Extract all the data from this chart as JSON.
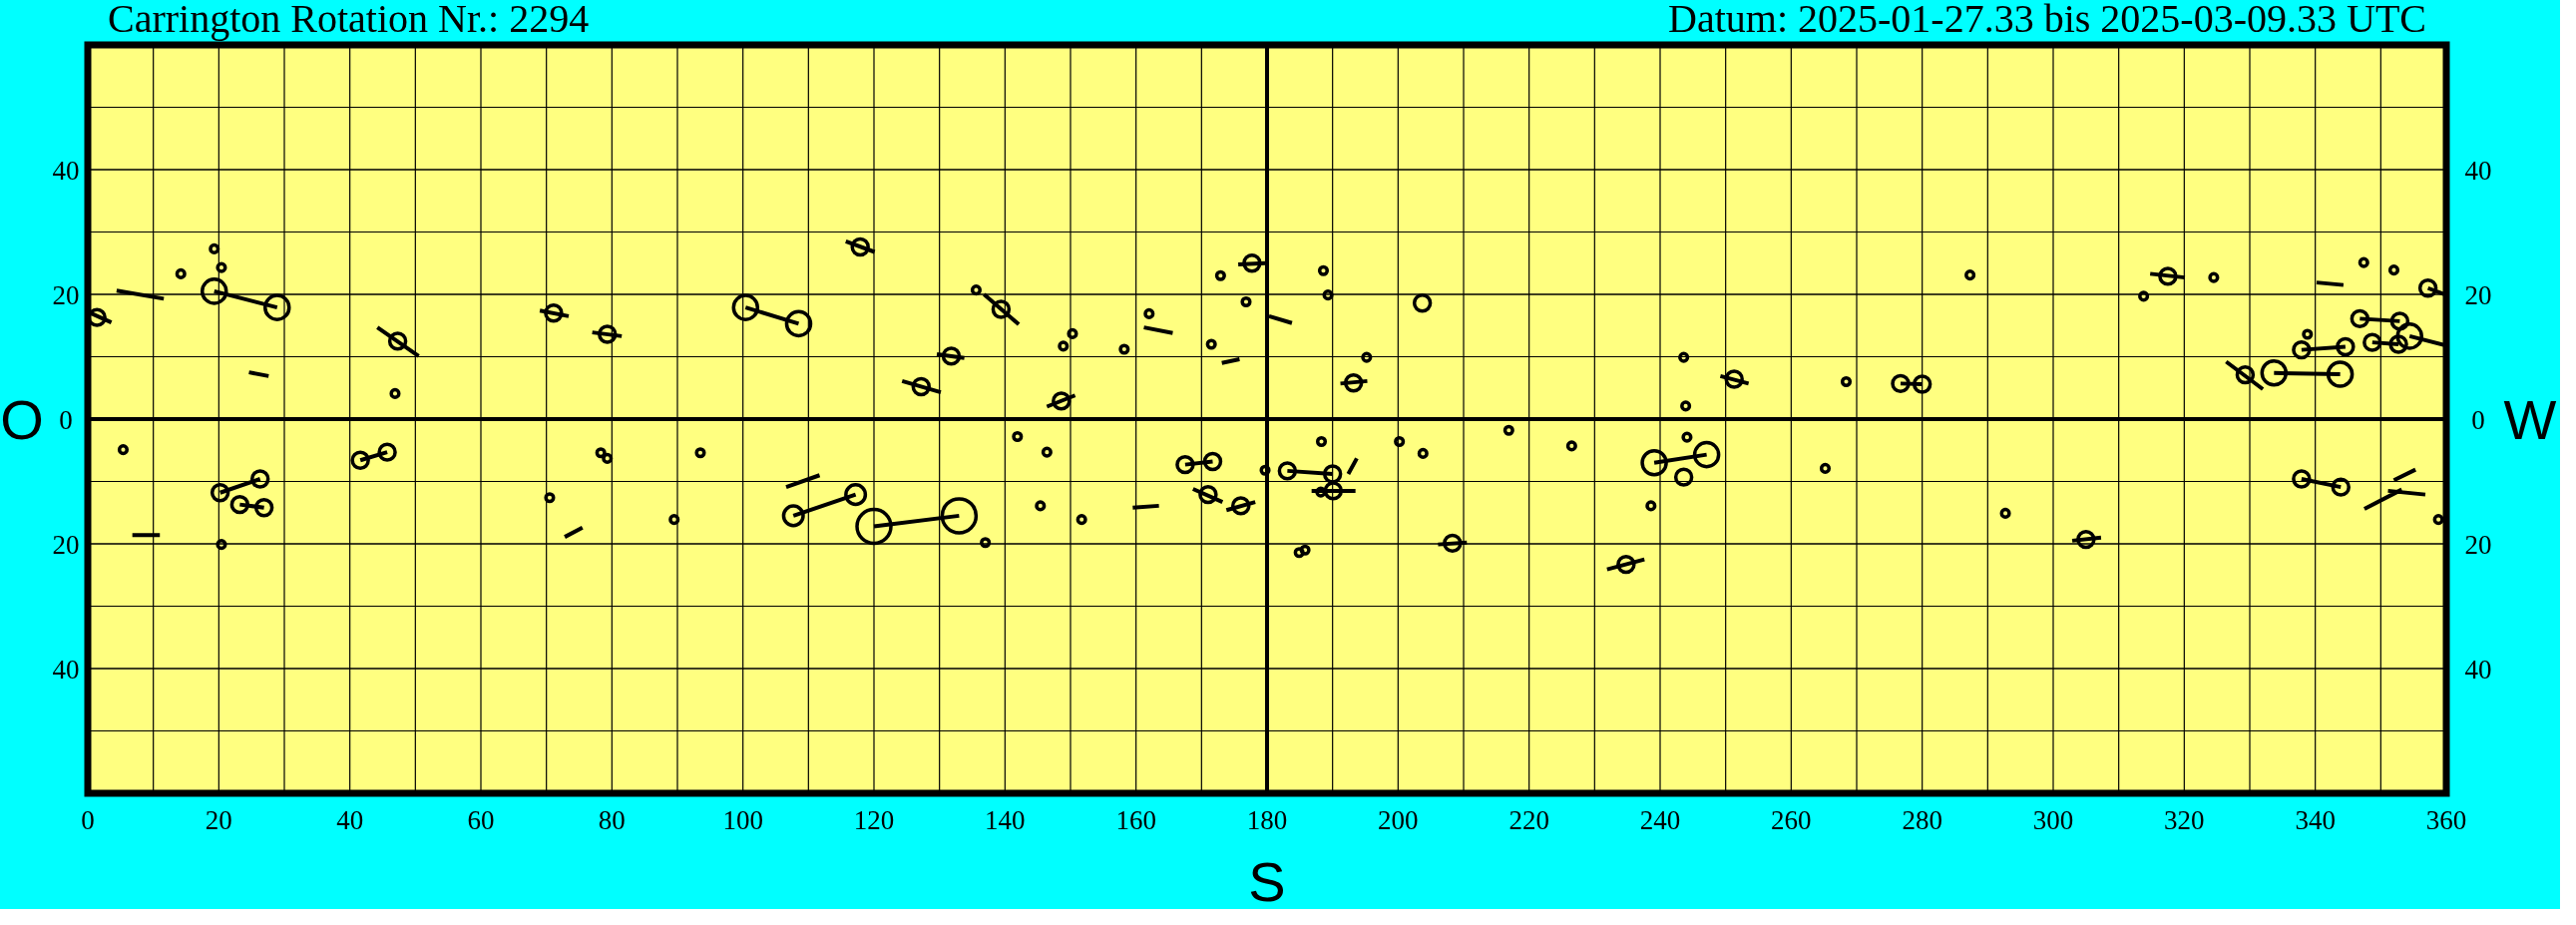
{
  "chart_data": {
    "type": "bubble",
    "title": "Carrington Rotation Nr.: 2294",
    "subtitle": "Datum: 2025-01-27.33 bis 2025-03-09.33 UTC",
    "xlabel": "S",
    "ylabel": "O",
    "y2label": "W",
    "relative": false,
    "xlim": [
      0,
      360
    ],
    "xticks": [
      0,
      {
        "value": 10,
        "label": null
      },
      20,
      {
        "value": 30,
        "label": null
      },
      40,
      {
        "value": 50,
        "label": null
      },
      60,
      {
        "value": 70,
        "label": null
      },
      80,
      {
        "value": 90,
        "label": null
      },
      100,
      {
        "value": 110,
        "label": null
      },
      120,
      {
        "value": 130,
        "label": null
      },
      140,
      {
        "value": 150,
        "label": null
      },
      160,
      {
        "value": 170,
        "label": null
      },
      180,
      {
        "value": 190,
        "label": null
      },
      200,
      {
        "value": 210,
        "label": null
      },
      220,
      {
        "value": 230,
        "label": null
      },
      240,
      {
        "value": 250,
        "label": null
      },
      260,
      {
        "value": 270,
        "label": null
      },
      280,
      {
        "value": 290,
        "label": null
      },
      300,
      {
        "value": 310,
        "label": null
      },
      320,
      {
        "value": 330,
        "label": null
      },
      340,
      {
        "value": 350,
        "label": null
      },
      360
    ],
    "ylim": [
      -60,
      60
    ],
    "yticks": [
      {
        "value": -50,
        "label": null
      },
      {
        "value": -40,
        "label": "40"
      },
      {
        "value": -30,
        "label": null
      },
      {
        "value": -20,
        "label": "20"
      },
      {
        "value": -10,
        "label": null
      },
      0,
      {
        "value": 10,
        "label": null
      },
      20,
      {
        "value": 30,
        "label": null
      },
      40,
      {
        "value": 50,
        "label": null
      }
    ],
    "y2lim": [
      -60,
      60
    ],
    "y2ticks": [
      {
        "value": -50,
        "label": null
      },
      {
        "value": -40,
        "label": "40"
      },
      {
        "value": -30,
        "label": null
      },
      {
        "value": -20,
        "label": "20"
      },
      {
        "value": -10,
        "label": null
      },
      0,
      {
        "value": 10,
        "label": null
      },
      20,
      {
        "value": 30,
        "label": null
      },
      40,
      {
        "value": 50,
        "label": null
      }
    ],
    "grid": true,
    "series": [
      {
        "color": "#000000",
        "x": [
          1.4,
          19.3,
          20.4,
          14.2,
          19.3,
          28.9,
          47.3,
          46.9,
          71.1,
          79.3,
          5.4,
          20.2,
          26.3,
          23.2,
          26.9,
          20.4,
          41.6,
          45.7,
          78.3,
          79.3,
          70.5,
          89.5,
          117.9,
          100.4,
          108.5,
          135.6,
          139.4,
          131.8,
          127.2,
          148.9,
          150.3,
          148.6,
          158.2,
          162.0,
          171.5,
          172.9,
          176.8,
          177.7,
          93.5,
          107.7,
          117.2,
          120.0,
          133.0,
          137.0,
          141.9,
          146.4,
          145.4,
          151.7,
          167.5,
          171.7,
          171.0,
          176.0,
          179.7,
          188.6,
          189.3,
          203.7,
          195.2,
          193.2,
          243.6,
          243.9,
          251.3,
          268.4,
          188.3,
          200.2,
          203.8,
          216.9,
          226.5,
          183.1,
          190.0,
          190.1,
          188.2,
          184.9,
          185.8,
          208.3,
          234.8,
          239.1,
          247.1,
          243.6,
          244.1,
          238.6,
          265.2,
          276.7,
          280.0,
          287.3,
          317.5,
          313.8,
          324.5,
          347.4,
          352.0,
          357.2,
          346.8,
          352.9,
          338.8,
          337.9,
          344.6,
          348.7,
          352.7,
          354.4,
          329.3,
          333.7,
          343.8,
          292.7,
          305.0,
          337.9,
          343.9,
          358.8
        ],
        "values": [
          16.3,
          27.3,
          24.3,
          23.3,
          20.5,
          17.9,
          12.5,
          4.1,
          17.0,
          13.6,
          -4.9,
          -11.8,
          -9.6,
          -13.7,
          -14.2,
          -20.1,
          -6.6,
          -5.3,
          -5.4,
          -6.3,
          -12.6,
          -16.1,
          27.6,
          17.9,
          15.3,
          20.7,
          17.6,
          10.1,
          5.2,
          11.7,
          13.7,
          2.9,
          11.2,
          16.9,
          12.0,
          23.0,
          18.8,
          25.0,
          -5.4,
          -15.5,
          -12.1,
          -17.2,
          -15.5,
          -19.8,
          -2.8,
          -5.3,
          -13.9,
          -16.1,
          -7.3,
          -6.8,
          -12.1,
          -13.9,
          -8.2,
          23.8,
          19.9,
          18.6,
          9.9,
          5.8,
          9.9,
          2.1,
          6.4,
          6.0,
          -3.6,
          -3.6,
          -5.5,
          -1.8,
          -4.3,
          -8.3,
          -8.8,
          -11.5,
          -11.7,
          -21.4,
          -21.0,
          -19.9,
          -23.3,
          -7.0,
          -5.7,
          -9.3,
          -2.9,
          -13.9,
          -7.9,
          5.7,
          5.6,
          23.1,
          22.9,
          19.7,
          22.7,
          25.1,
          23.9,
          21.0,
          16.1,
          15.7,
          13.6,
          11.1,
          11.6,
          12.3,
          12.0,
          13.3,
          7.1,
          7.4,
          7.2,
          -15.1,
          -19.3,
          -9.6,
          -10.9,
          -16.1
        ],
        "sizes": [
          0.22,
          0.05,
          0.05,
          0.05,
          0.5,
          0.5,
          0.22,
          0.05,
          0.22,
          0.22,
          0.05,
          0.22,
          0.22,
          0.22,
          0.22,
          0.05,
          0.22,
          0.22,
          0.05,
          0.05,
          0.05,
          0.05,
          0.22,
          0.5,
          0.5,
          0.05,
          0.22,
          0.22,
          0.22,
          0.05,
          0.05,
          0.22,
          0.05,
          0.05,
          0.05,
          0.05,
          0.05,
          0.22,
          0.05,
          0.33,
          0.33,
          1,
          1,
          0.05,
          0.05,
          0.05,
          0.05,
          0.05,
          0.22,
          0.22,
          0.22,
          0.22,
          0.05,
          0.05,
          0.05,
          0.22,
          0.05,
          0.22,
          0.05,
          0.05,
          0.22,
          0.05,
          0.05,
          0.05,
          0.05,
          0.05,
          0.05,
          0.22,
          0.22,
          0.22,
          0.05,
          0.05,
          0.05,
          0.22,
          0.22,
          0.5,
          0.5,
          0.22,
          0.05,
          0.05,
          0.05,
          0.22,
          0.22,
          0.05,
          0.22,
          0.05,
          0.05,
          0.05,
          0.05,
          0.22,
          0.22,
          0.22,
          0.05,
          0.22,
          0.22,
          0.22,
          0.22,
          0.5,
          0.22,
          0.5,
          0.5,
          0.05,
          0.22,
          0.22,
          0.22,
          0.05
        ]
      },
      {
        "type": "line",
        "color": "#000000",
        "x": [
          0,
          3.6,
          null,
          4.4,
          11.6,
          null,
          19.3,
          28.9,
          null,
          24.6,
          27.6,
          null,
          44.2,
          50.5,
          null,
          69.0,
          73.4,
          null,
          77.0,
          81.5,
          null,
          20.2,
          26.3,
          null,
          23.2,
          26.9,
          null,
          6.8,
          11.0,
          null,
          41.6,
          45.7,
          null,
          72.8,
          75.5,
          null,
          115.7,
          120.1,
          null,
          100.4,
          108.5,
          null,
          136.8,
          142.1,
          null,
          129.6,
          133.8,
          null,
          124.3,
          130.2,
          null,
          146.4,
          150.7,
          null,
          161.2,
          165.6,
          null,
          173.1,
          175.8,
          null,
          175.6,
          179.7,
          null,
          180.3,
          183.8,
          null,
          106.6,
          111.7,
          null,
          107.7,
          117.2,
          null,
          120.0,
          133.0,
          null,
          159.5,
          163.5,
          null,
          167.5,
          171.7,
          null,
          168.7,
          173.2,
          null,
          173.8,
          178.2,
          null,
          191.2,
          195.3,
          null,
          249.2,
          253.5,
          null,
          183.1,
          190.0,
          null,
          192.4,
          193.7,
          null,
          186.8,
          193.5,
          null,
          206.1,
          210.5,
          null,
          231.9,
          237.6,
          null,
          239.1,
          247.1,
          null,
          276.7,
          280.0,
          null,
          314.8,
          320.1,
          null,
          340.2,
          344.3,
          null,
          346.8,
          352.9,
          null,
          337.9,
          344.6,
          null,
          348.7,
          352.7,
          null,
          326.4,
          332.0,
          null,
          333.7,
          343.8,
          null,
          302.9,
          307.3,
          null,
          337.9,
          343.9,
          null,
          347.5,
          353.2,
          null,
          352.0,
          355.3,
          null,
          351.1,
          356.8,
          null,
          357.2,
          360,
          null,
          354.4,
          360
        ],
        "values": [
          17.2,
          15.5,
          null,
          20.6,
          19.3,
          null,
          20.5,
          17.9,
          null,
          7.5,
          6.9,
          null,
          14.7,
          10.1,
          null,
          17.4,
          16.5,
          null,
          13.9,
          13.3,
          null,
          -11.8,
          -9.6,
          null,
          -13.7,
          -14.2,
          null,
          -18.6,
          -18.6,
          null,
          -6.6,
          -5.3,
          null,
          -18.9,
          -17.4,
          null,
          28.5,
          26.8,
          null,
          17.9,
          15.3,
          null,
          20.0,
          15.2,
          null,
          10.4,
          9.8,
          null,
          6.1,
          4.3,
          null,
          2.0,
          3.8,
          null,
          14.7,
          13.8,
          null,
          9.0,
          9.6,
          null,
          24.8,
          25.0,
          null,
          16.5,
          15.4,
          null,
          -10.9,
          -9.0,
          null,
          -15.5,
          -12.1,
          null,
          -17.2,
          -15.5,
          null,
          -14.2,
          -13.9,
          null,
          -7.3,
          -6.8,
          null,
          -11.2,
          -13.3,
          null,
          -14.6,
          -13.3,
          null,
          5.7,
          6.1,
          null,
          6.9,
          5.7,
          null,
          -8.3,
          -8.8,
          null,
          -8.8,
          -6.3,
          null,
          -11.5,
          -11.5,
          null,
          -20.1,
          -19.8,
          null,
          -24.1,
          -22.5,
          null,
          -7.0,
          -5.7,
          null,
          5.7,
          5.6,
          null,
          23.3,
          22.7,
          null,
          21.9,
          21.5,
          null,
          16.1,
          15.7,
          null,
          11.1,
          11.6,
          null,
          12.3,
          12.0,
          null,
          9.2,
          4.8,
          null,
          7.4,
          7.2,
          null,
          -19.5,
          -19.0,
          null,
          -9.6,
          -10.9,
          null,
          -14.4,
          -11.3,
          null,
          -9.8,
          -8.1,
          null,
          -11.5,
          -12.1,
          null,
          21.0,
          19.9,
          null,
          13.3,
          11.8
        ]
      }
    ]
  }
}
